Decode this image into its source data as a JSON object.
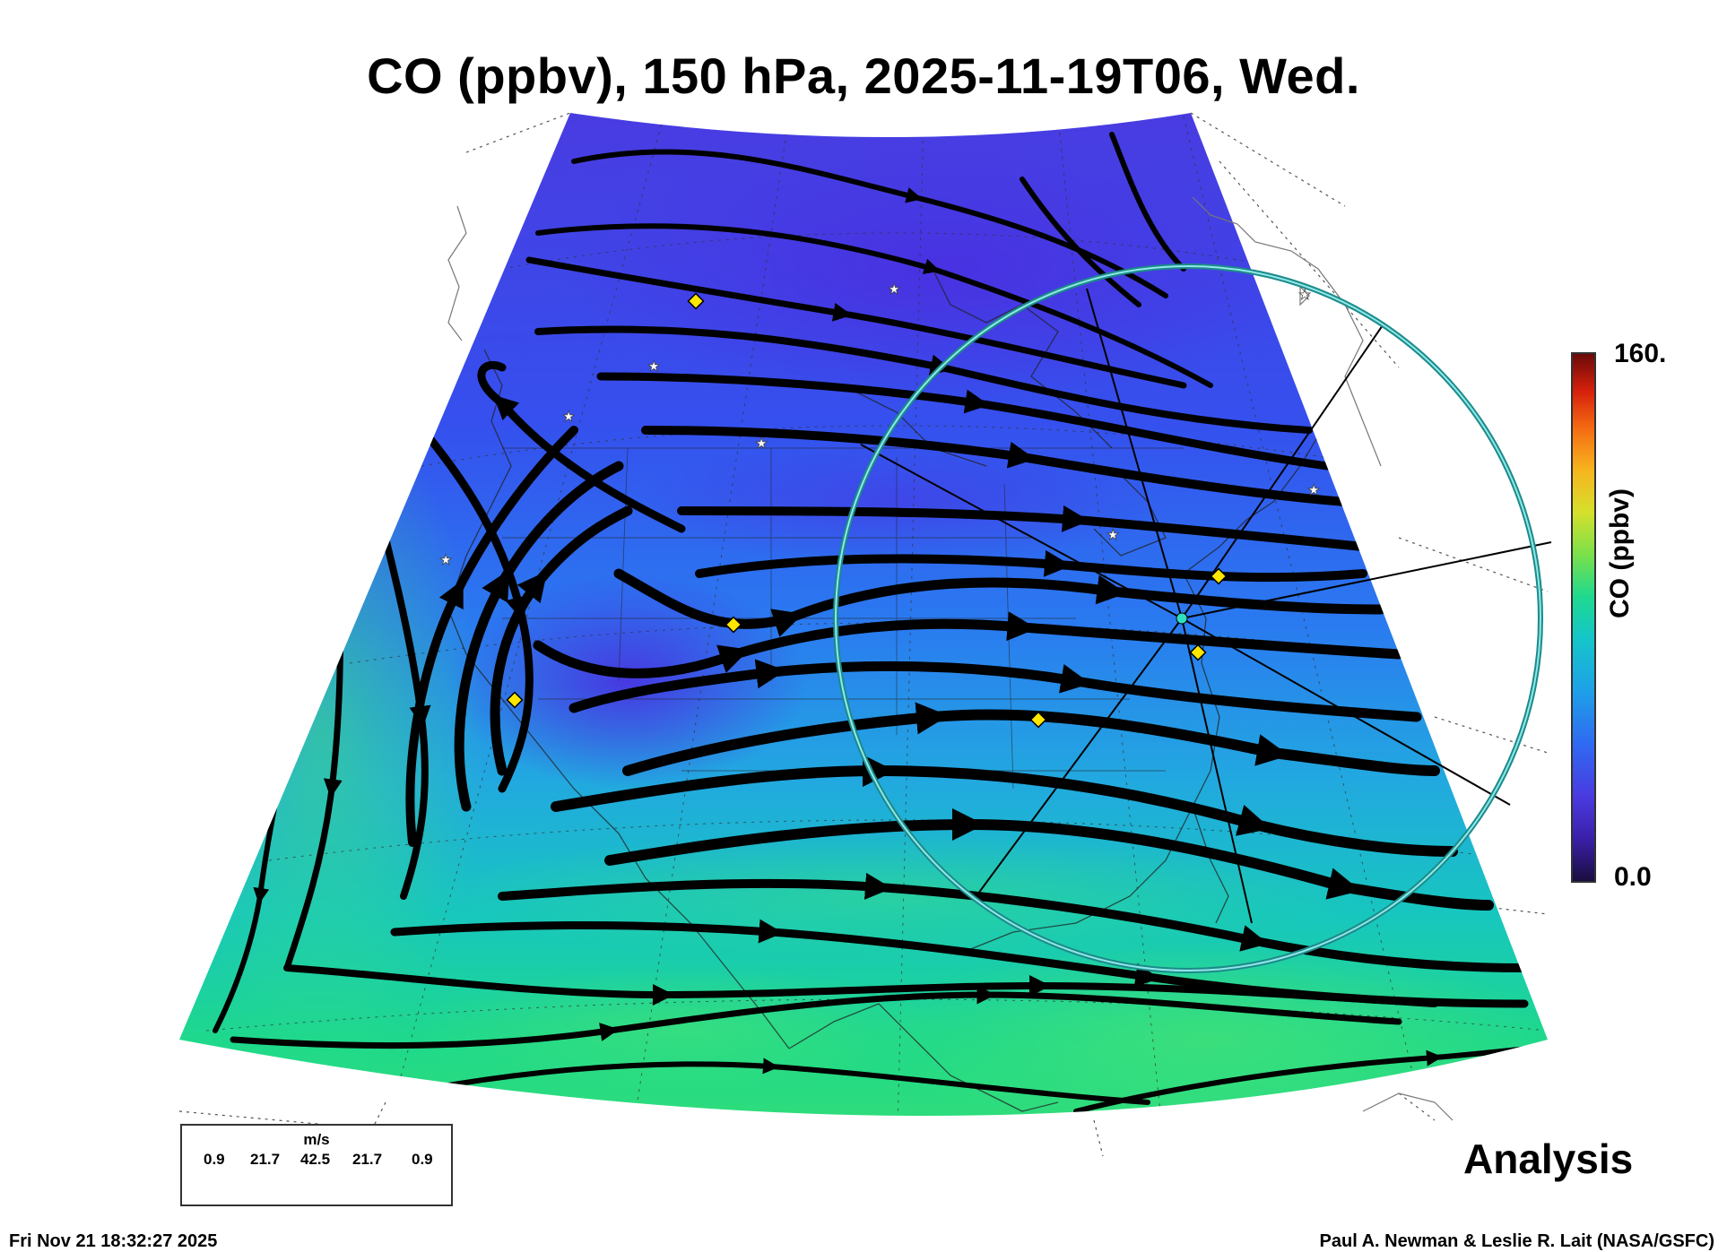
{
  "title": "CO (ppbv), 150 hPa, 2025-11-19T06, Wed.",
  "colorbar": {
    "variable_label": "CO (ppbv)",
    "max_label": "160.",
    "min_label": "0.0",
    "colormap": [
      "#1a0d3f",
      "#4a3ae0",
      "#1ea0e8",
      "#1fd98f",
      "#d6e02c",
      "#f46a12",
      "#6a0a08"
    ]
  },
  "wind_legend": {
    "unit": "m/s",
    "values": [
      "0.9",
      "21.7",
      "42.5",
      "21.7",
      "0.9"
    ]
  },
  "product_label": "Analysis",
  "timestamp": "Fri Nov 21 18:32:27 2025",
  "credit": "Paul A. Newman & Leslie R. Lait (NASA/GSFC)",
  "colors": {
    "background": "#ffffff",
    "streamline": "#000000",
    "range_ring": "#2ec4c4",
    "site_marker": "#ffe600",
    "star_marker": "#ffffff"
  },
  "map_layers": [
    "co-field",
    "wind-streamlines",
    "coastlines",
    "state-borders",
    "graticule",
    "range-ring",
    "site-markers"
  ]
}
